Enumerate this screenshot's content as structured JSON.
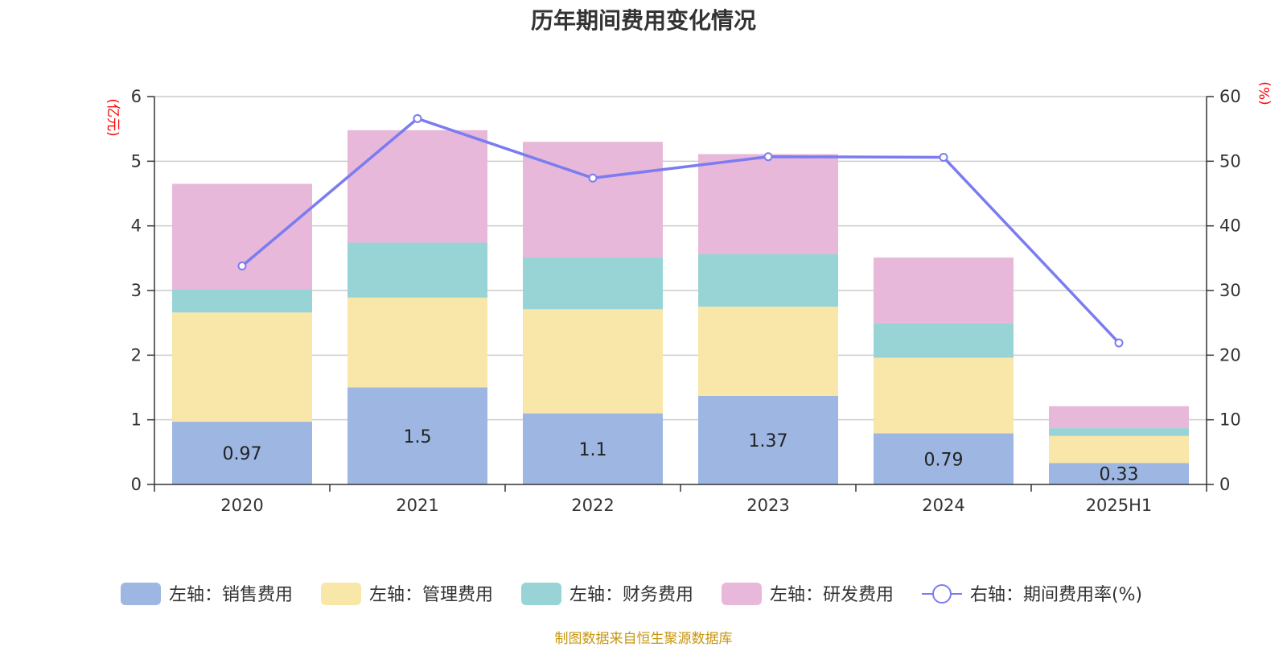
{
  "chart_data": {
    "type": "bar",
    "title": "历年期间费用变化情况",
    "categories": [
      "2020",
      "2021",
      "2022",
      "2023",
      "2024",
      "2025H1"
    ],
    "y_left": {
      "unit_label": "(亿元)",
      "ylim": [
        0,
        6
      ],
      "ticks": [
        "0",
        "1",
        "2",
        "3",
        "4",
        "5",
        "6"
      ]
    },
    "y_right": {
      "unit_label": "(%)",
      "ylim": [
        0,
        60
      ],
      "ticks": [
        "0",
        "10",
        "20",
        "30",
        "40",
        "50",
        "60"
      ]
    },
    "grid": true,
    "legend_position": "bottom",
    "series": [
      {
        "name": "左轴：销售费用",
        "type": "bar",
        "axis": "left",
        "color": "#9db7e2",
        "values": [
          0.97,
          1.5,
          1.1,
          1.37,
          0.79,
          0.33
        ],
        "data_labels": [
          "0.97",
          "1.5",
          "1.1",
          "1.37",
          "0.79",
          "0.33"
        ]
      },
      {
        "name": "左轴：管理费用",
        "type": "bar",
        "axis": "left",
        "color": "#f8e7a8",
        "values": [
          1.69,
          1.39,
          1.61,
          1.38,
          1.17,
          0.42
        ]
      },
      {
        "name": "左轴：财务费用",
        "type": "bar",
        "axis": "left",
        "color": "#98d4d5",
        "values": [
          0.36,
          0.85,
          0.8,
          0.81,
          0.53,
          0.12
        ]
      },
      {
        "name": "左轴：研发费用",
        "type": "bar",
        "axis": "left",
        "color": "#e7b8da",
        "values": [
          1.63,
          1.74,
          1.79,
          1.55,
          1.02,
          0.34
        ]
      },
      {
        "name": "右轴：期间费用率(%)",
        "type": "line",
        "axis": "right",
        "color": "#7b7cf0",
        "values": [
          33.8,
          56.6,
          47.4,
          50.7,
          50.6,
          21.9
        ]
      }
    ]
  },
  "source_note": "制图数据来自恒生聚源数据库"
}
